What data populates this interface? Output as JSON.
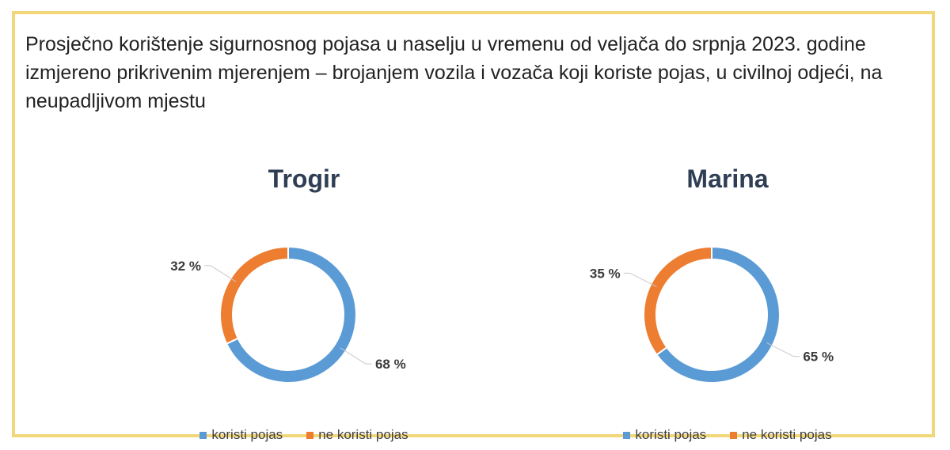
{
  "heading": "Prosječno korištenje sigurnosnog pojasa u naselju u vremenu od veljača do srpnja 2023. godine izmjereno prikrivenim mjerenjem – brojanjem vozila i vozača koji koriste pojas, u civilnoj odjeći, na neupadljivom mjestu",
  "colors": {
    "koristi": "#5b9bd5",
    "ne_koristi": "#ed7d31",
    "frame": "#f1d77a"
  },
  "chart_data": [
    {
      "type": "pie",
      "title": "Trogir",
      "categories": [
        "koristi pojas",
        "ne koristi pojas"
      ],
      "values": [
        68,
        32
      ],
      "labels": [
        "68 %",
        "32 %"
      ],
      "legend_position": "bottom"
    },
    {
      "type": "pie",
      "title": "Marina",
      "categories": [
        "koristi pojas",
        "ne koristi pojas"
      ],
      "values": [
        65,
        35
      ],
      "labels": [
        "65 %",
        "35 %"
      ],
      "legend_position": "bottom"
    }
  ]
}
